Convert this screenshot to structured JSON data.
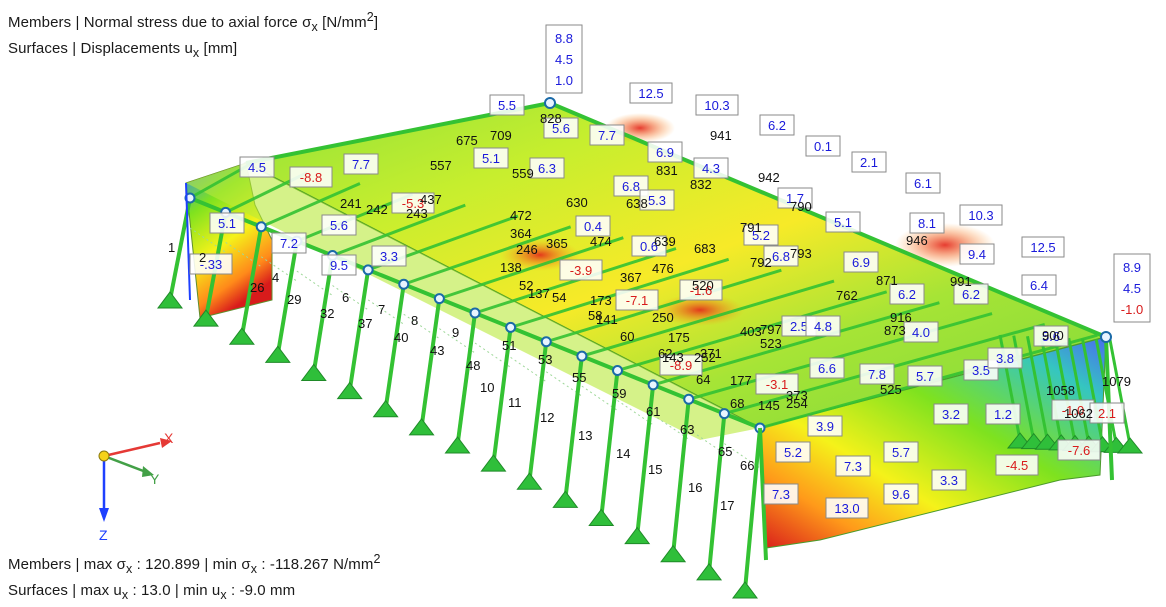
{
  "legend_top": {
    "line1": {
      "prefix": "Members | Normal stress due to axial force σ",
      "sub": "x",
      "suffix": " [N/mm",
      "sup": "2",
      "end": "]"
    },
    "line2": {
      "prefix": "Surfaces | Displacements u",
      "sub": "x",
      "suffix": " [mm]"
    }
  },
  "legend_bottom": {
    "line1": {
      "prefix": "Members | max σ",
      "sub1": "x",
      "mid1": " : 120.899 | min σ",
      "sub2": "x",
      "mid2": " : -118.267 N/mm",
      "sup": "2"
    },
    "line2": {
      "prefix": "Surfaces | max u",
      "sub1": "x",
      "mid1": " : 13.0 | min u",
      "sub2": "x",
      "mid2": " : -9.0 mm"
    }
  },
  "axes": {
    "x": "X",
    "y": "Y",
    "z": "Z",
    "x_color": "#e53935",
    "y_color": "#43a047",
    "z_color": "#1e40ff"
  },
  "colors": {
    "blue_value": "#1a1adb",
    "red_value": "#d81b1b",
    "member_green": "#34c233",
    "node_blue": "#1a6aa8"
  },
  "stacks": [
    {
      "values": [
        "8.8",
        "4.5",
        "1.0"
      ],
      "colors": [
        "blue",
        "blue",
        "blue"
      ]
    },
    {
      "values": [
        "8.9",
        "4.5",
        "-1.0"
      ],
      "colors": [
        "blue",
        "blue",
        "red"
      ]
    }
  ],
  "displacement_labels": [
    {
      "text": "4.5",
      "color": "blue"
    },
    {
      "text": "-8.8",
      "color": "red"
    },
    {
      "text": "7.7",
      "color": "blue"
    },
    {
      "text": "5.5",
      "color": "blue"
    },
    {
      "text": "12.5",
      "color": "blue"
    },
    {
      "text": "10.3",
      "color": "blue"
    },
    {
      "text": "6.2",
      "color": "blue"
    },
    {
      "text": "0.1",
      "color": "blue"
    },
    {
      "text": "2.1",
      "color": "blue"
    },
    {
      "text": "6.1",
      "color": "blue"
    },
    {
      "text": "8.1",
      "color": "blue"
    },
    {
      "text": "10.3",
      "color": "blue"
    },
    {
      "text": "12.5",
      "color": "blue"
    },
    {
      "text": "9.4",
      "color": "blue"
    },
    {
      "text": "6.4",
      "color": "blue"
    },
    {
      "text": "5.6",
      "color": "blue"
    },
    {
      "text": "5.1",
      "color": "blue"
    },
    {
      "text": "7.2",
      "color": "blue"
    },
    {
      "text": "-.33",
      "color": "blue"
    },
    {
      "text": "5.6",
      "color": "blue"
    },
    {
      "text": "9.5",
      "color": "blue"
    },
    {
      "text": "3.3",
      "color": "blue"
    },
    {
      "text": "-5.3",
      "color": "red"
    },
    {
      "text": "5.1",
      "color": "blue"
    },
    {
      "text": "5.6",
      "color": "blue"
    },
    {
      "text": "6.3",
      "color": "blue"
    },
    {
      "text": "7.7",
      "color": "blue"
    },
    {
      "text": "6.9",
      "color": "blue"
    },
    {
      "text": "4.3",
      "color": "blue"
    },
    {
      "text": "6.8",
      "color": "blue"
    },
    {
      "text": "5.3",
      "color": "blue"
    },
    {
      "text": "0.4",
      "color": "blue"
    },
    {
      "text": "0.6",
      "color": "blue"
    },
    {
      "text": "-3.9",
      "color": "red"
    },
    {
      "text": "-7.1",
      "color": "red"
    },
    {
      "text": "-1.6",
      "color": "red"
    },
    {
      "text": "-8.9",
      "color": "red"
    },
    {
      "text": "5.2",
      "color": "blue"
    },
    {
      "text": "6.8",
      "color": "blue"
    },
    {
      "text": "1.7",
      "color": "blue"
    },
    {
      "text": "5.1",
      "color": "blue"
    },
    {
      "text": "6.9",
      "color": "blue"
    },
    {
      "text": "6.2",
      "color": "blue"
    },
    {
      "text": "6.2",
      "color": "blue"
    },
    {
      "text": "2.5",
      "color": "blue"
    },
    {
      "text": "4.8",
      "color": "blue"
    },
    {
      "text": "4.0",
      "color": "blue"
    },
    {
      "text": "6.6",
      "color": "blue"
    },
    {
      "text": "7.8",
      "color": "blue"
    },
    {
      "text": "5.7",
      "color": "blue"
    },
    {
      "text": "3.5",
      "color": "blue"
    },
    {
      "text": "3.8",
      "color": "blue"
    },
    {
      "text": "-3.1",
      "color": "red"
    },
    {
      "text": "3.9",
      "color": "blue"
    },
    {
      "text": "3.2",
      "color": "blue"
    },
    {
      "text": "1.2",
      "color": "blue"
    },
    {
      "text": "-1.0",
      "color": "red"
    },
    {
      "text": "2.1",
      "color": "red"
    },
    {
      "text": "5.2",
      "color": "blue"
    },
    {
      "text": "7.3",
      "color": "blue"
    },
    {
      "text": "5.7",
      "color": "blue"
    },
    {
      "text": "7.3",
      "color": "blue"
    },
    {
      "text": "13.0",
      "color": "blue"
    },
    {
      "text": "9.6",
      "color": "blue"
    },
    {
      "text": "3.3",
      "color": "blue"
    },
    {
      "text": "-4.5",
      "color": "red"
    },
    {
      "text": "-7.6",
      "color": "red"
    }
  ],
  "member_labels": [
    "1",
    "2",
    "4",
    "6",
    "7",
    "8",
    "9",
    "10",
    "11",
    "12",
    "13",
    "14",
    "15",
    "16",
    "17",
    "26",
    "29",
    "32",
    "37",
    "40",
    "43",
    "48",
    "51",
    "52",
    "53",
    "54",
    "55",
    "58",
    "59",
    "60",
    "61",
    "62",
    "63",
    "64",
    "65",
    "68",
    "66",
    "137",
    "138",
    "141",
    "143",
    "145",
    "173",
    "175",
    "177",
    "241",
    "242",
    "243",
    "246",
    "250",
    "252",
    "254",
    "364",
    "365",
    "367",
    "371",
    "373",
    "403",
    "437",
    "472",
    "474",
    "476",
    "520",
    "523",
    "525",
    "557",
    "559",
    "630",
    "638",
    "639",
    "675",
    "683",
    "709",
    "762",
    "790",
    "791",
    "792",
    "793",
    "797",
    "828",
    "831",
    "832",
    "871",
    "873",
    "900",
    "916",
    "941",
    "942",
    "946",
    "991",
    "1058",
    "1062",
    "1079"
  ]
}
